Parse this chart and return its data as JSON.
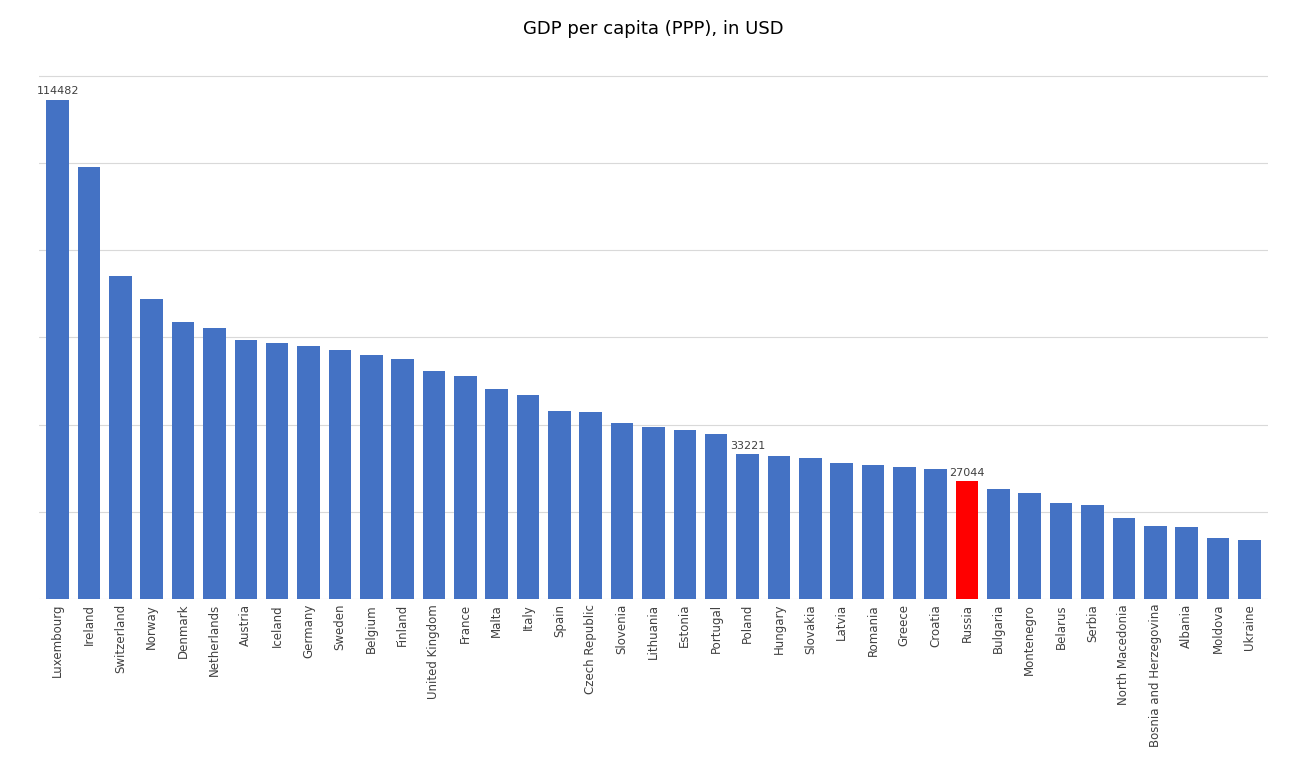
{
  "title": "GDP per capita (PPP), in USD",
  "countries": [
    "Luxembourg",
    "Ireland",
    "Switzerland",
    "Norway",
    "Denmark",
    "Netherlands",
    "Austria",
    "Iceland",
    "Germany",
    "Sweden",
    "Belgium",
    "Finland",
    "United Kingdom",
    "France",
    "Malta",
    "Italy",
    "Spain",
    "Czech Republic",
    "Slovenia",
    "Lithuania",
    "Estonia",
    "Portugal",
    "Poland",
    "Hungary",
    "Slovakia",
    "Latvia",
    "Romania",
    "Greece",
    "Croatia",
    "Russia",
    "Bulgaria",
    "Montenegro",
    "Belarus",
    "Serbia",
    "North Macedonia",
    "Bosnia and Herzegovina",
    "Albania",
    "Moldova",
    "Ukraine"
  ],
  "values": [
    114482,
    99013,
    74070,
    68895,
    63434,
    62100,
    59410,
    58686,
    57928,
    57073,
    55993,
    55000,
    52190,
    51071,
    48200,
    46780,
    43070,
    42860,
    40430,
    39390,
    38730,
    37910,
    33221,
    32880,
    32350,
    31080,
    30690,
    30230,
    29880,
    27044,
    25300,
    24200,
    22000,
    21500,
    18500,
    16700,
    16400,
    14000,
    13530
  ],
  "bar_color": "#4472C4",
  "highlight_color": "#FF0000",
  "highlight_country": "Russia",
  "label_countries": [
    "Luxembourg",
    "Poland",
    "Russia"
  ],
  "label_values": {
    "Luxembourg": 114482,
    "Poland": 33221,
    "Russia": 27044
  },
  "background_color": "#FFFFFF",
  "grid_color": "#D9D9D9",
  "title_fontsize": 13,
  "tick_fontsize": 8.5,
  "label_fontsize": 8,
  "ylim": [
    0,
    125000
  ],
  "ytick_count": 6
}
